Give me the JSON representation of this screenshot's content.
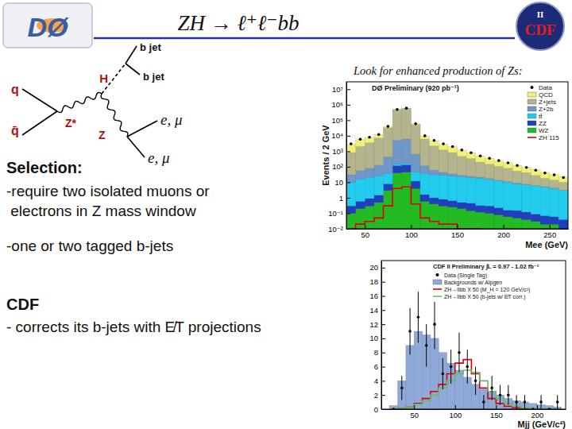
{
  "slide": {
    "title": "ZH → ℓ⁺ℓ⁻bb",
    "logo_left": "DØ",
    "logo_right": "CDF",
    "logo_right_sub": "II",
    "diagram": {
      "q": "q",
      "qbar": "q̄",
      "zstar": "Z*",
      "h": "H",
      "b1": "b jet",
      "b2": "b jet",
      "z": "Z",
      "l1": "e, μ",
      "l2": "e, μ"
    },
    "note": "Look for enhanced production of Zs:",
    "selection": {
      "heading": "Selection:",
      "lines": [
        "-require two isolated muons or",
        " electrons in Z mass window",
        "-one or two tagged b-jets"
      ]
    },
    "cdf": {
      "heading": "CDF",
      "line": "- corrects its b-jets with E̸T projections"
    }
  },
  "chart_data": [
    {
      "type": "histogram",
      "title": "DØ Preliminary (920 pb⁻¹)",
      "xlabel": "Mee (GeV)",
      "ylabel": "Events / 2 GeV",
      "log": "y",
      "stacked": true,
      "legend": "upper right",
      "bins": [
        30,
        40,
        50,
        60,
        70,
        80,
        90,
        100,
        110,
        120,
        130,
        140,
        150,
        160,
        170,
        180,
        190,
        200,
        210,
        220,
        230,
        240,
        250,
        260,
        270
      ],
      "xlim": [
        30,
        270
      ],
      "xticks": [
        50,
        100,
        150,
        200,
        250
      ],
      "ylim": [
        0.01,
        30000000
      ],
      "yticks": [
        {
          "value": 0.01,
          "label": "10⁻²"
        },
        {
          "value": 0.1,
          "label": "10⁻¹"
        },
        1,
        10,
        {
          "value": 100,
          "label": "10²"
        },
        {
          "value": 1000,
          "label": "10³"
        },
        {
          "value": 10000,
          "label": "10⁴"
        },
        {
          "value": 100000,
          "label": "10⁵"
        },
        {
          "value": 1000000,
          "label": "10⁶"
        },
        {
          "value": 10000000,
          "label": "10⁷"
        }
      ],
      "series": [
        {
          "name": "Data",
          "type": "scatter",
          "marker": "circle",
          "color": "#000000",
          "values": [
            3000,
            6000,
            8000,
            12000,
            40000,
            500000,
            600000,
            60000,
            10000,
            5000,
            3000,
            2000,
            1200,
            800,
            500,
            350,
            250,
            180,
            120,
            90,
            60,
            40,
            30,
            20
          ]
        },
        {
          "name": "QCD",
          "type": "bar",
          "color": "#f0f07a",
          "values": [
            2000,
            3500,
            4000,
            4500,
            5000,
            6000,
            5000,
            4000,
            3500,
            2500,
            1600,
            1100,
            700,
            450,
            300,
            200,
            140,
            100,
            70,
            50,
            35,
            25,
            18,
            12
          ]
        },
        {
          "name": "Z+jets",
          "type": "bar",
          "color": "#b4b48e",
          "values": [
            800,
            2000,
            3500,
            7000,
            33000,
            480000,
            580000,
            54000,
            6000,
            2200,
            1200,
            800,
            450,
            320,
            180,
            130,
            95,
            70,
            45,
            35,
            22,
            13,
            10,
            7
          ]
        },
        {
          "name": "Z+2b",
          "type": "bar",
          "color": "#6f97c7",
          "values": [
            20,
            40,
            60,
            100,
            400,
            5000,
            6000,
            600,
            80,
            30,
            15,
            10,
            6,
            4,
            3,
            2,
            1.5,
            1,
            0.7,
            0.5,
            0.3,
            0.2,
            0.15,
            0.1
          ]
        },
        {
          "name": "tt̄",
          "type": "bar",
          "color": "#22ccee",
          "values": [
            10,
            15,
            20,
            25,
            30,
            35,
            35,
            35,
            35,
            30,
            28,
            25,
            22,
            20,
            18,
            15,
            12,
            10,
            8,
            7,
            6,
            5,
            4,
            3
          ]
        },
        {
          "name": "ZZ",
          "type": "bar",
          "color": "#1f3fbf",
          "values": [
            0.2,
            0.4,
            0.6,
            1,
            5,
            80,
            90,
            8,
            1,
            0.6,
            0.5,
            0.4,
            0.3,
            0.3,
            0.2,
            0.2,
            0.15,
            0.1,
            0.1,
            0.08,
            0.06,
            0.05,
            0.04,
            0.03
          ]
        },
        {
          "name": "WZ",
          "type": "bar",
          "color": "#22bb22",
          "values": [
            0.1,
            0.2,
            0.3,
            0.5,
            3,
            40,
            45,
            4,
            0.6,
            0.4,
            0.3,
            0.25,
            0.2,
            0.15,
            0.12,
            0.1,
            0.08,
            0.06,
            0.05,
            0.04,
            0.03,
            0.02,
            0.02,
            0.01
          ]
        },
        {
          "name": "ZH 115",
          "type": "line",
          "line_style": "step",
          "color": "#e00000",
          "values": [
            0.01,
            0.02,
            0.03,
            0.05,
            0.3,
            4,
            5,
            0.4,
            0.05,
            0.03,
            0.02,
            0.02,
            0.01,
            0.01,
            0.01,
            0,
            0,
            0,
            0,
            0,
            0,
            0,
            0,
            0
          ]
        }
      ]
    },
    {
      "type": "histogram",
      "title": "CDF II Preliminary ∫L = 0.97 - 1.02 fb⁻¹",
      "xlabel": "Mjj (GeV/c²)",
      "legend": "upper right",
      "bins": [
        20,
        30,
        40,
        50,
        60,
        70,
        80,
        90,
        100,
        110,
        120,
        130,
        140,
        150,
        160,
        170,
        180,
        190,
        200,
        210,
        220,
        230
      ],
      "xlim": [
        10,
        235
      ],
      "xticks": [
        50,
        100,
        150,
        200
      ],
      "ylim": [
        0,
        21
      ],
      "yticks": [
        0,
        2,
        4,
        6,
        8,
        10,
        12,
        14,
        16,
        18,
        20
      ],
      "series": [
        {
          "name": "Data (Single Tag)",
          "type": "scatter",
          "marker": "circle",
          "color": "#000000",
          "values": [
            0,
            3,
            11,
            13,
            9,
            12,
            5,
            6,
            8,
            6,
            4,
            1,
            3,
            2,
            2,
            1,
            1,
            0,
            1,
            0,
            1
          ],
          "errors": [
            0,
            1.7,
            3.3,
            3.6,
            3,
            3.5,
            2.2,
            2.4,
            2.8,
            2.4,
            2,
            1,
            1.7,
            1.4,
            1.4,
            1,
            1,
            0,
            1,
            0,
            1
          ]
        },
        {
          "name": "Backgrounds w/ Alpgen",
          "type": "bar",
          "color": "#8fa9d9",
          "values": [
            0.5,
            4,
            9,
            11,
            10.5,
            10,
            8,
            6.5,
            5.5,
            4.5,
            3.5,
            3,
            2.5,
            2,
            1.5,
            1.2,
            1,
            0.8,
            0.6,
            0.5,
            0.3
          ]
        },
        {
          "name": "ZH→llbb X 50 (M_H = 120 GeV/c²)",
          "type": "line",
          "line_style": "step",
          "color": "#e00000",
          "values": [
            0,
            0.1,
            0.3,
            0.8,
            1.5,
            2.5,
            3.5,
            5,
            6.5,
            7,
            5,
            3,
            1.5,
            0.8,
            0.4,
            0.2,
            0.1,
            0.05,
            0,
            0,
            0
          ]
        },
        {
          "name": "ZH→llbb X 50 (b-jets w/ E̸T corr.)",
          "type": "line",
          "line_style": "step",
          "color": "#66bb66",
          "values": [
            0,
            0.1,
            0.3,
            0.7,
            1.2,
            2,
            3,
            4,
            5,
            5.5,
            5.2,
            4,
            2.5,
            1.5,
            0.8,
            0.4,
            0.2,
            0.1,
            0,
            0,
            0
          ]
        }
      ]
    }
  ]
}
